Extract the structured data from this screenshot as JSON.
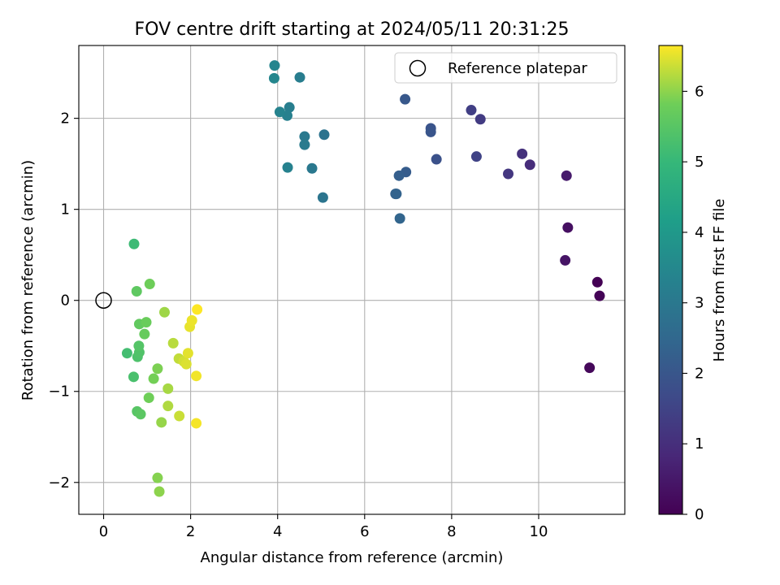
{
  "chart_data": {
    "type": "scatter",
    "title": "FOV centre drift starting at 2024/05/11 20:31:25",
    "xlabel": "Angular distance from reference (arcmin)",
    "ylabel": "Rotation from reference (arcmin)",
    "xlim": [
      -0.57,
      11.98
    ],
    "ylim": [
      -2.35,
      2.8
    ],
    "xticks": [
      0,
      2,
      4,
      6,
      8,
      10
    ],
    "yticks": [
      -2,
      -1,
      0,
      1,
      2
    ],
    "xtick_labels": [
      "0",
      "2",
      "4",
      "6",
      "8",
      "10"
    ],
    "ytick_labels": [
      "−2",
      "−1",
      "0",
      "1",
      "2"
    ],
    "grid": true,
    "colormap": "viridis",
    "colorbar": {
      "label": "Hours from first FF file",
      "range": [
        0,
        6.65
      ],
      "ticks": [
        0,
        1,
        2,
        3,
        4,
        5,
        6
      ],
      "tick_labels": [
        "0",
        "1",
        "2",
        "3",
        "4",
        "5",
        "6"
      ]
    },
    "legend": {
      "position": "top-right",
      "entries": [
        {
          "label": "Reference platepar",
          "marker": "open-circle",
          "color": "#000000"
        }
      ]
    },
    "reference_point": {
      "x": 0,
      "y": 0
    },
    "points": [
      {
        "x": 11.35,
        "y": 0.2,
        "c": 0.0
      },
      {
        "x": 11.4,
        "y": 0.05,
        "c": 0.05
      },
      {
        "x": 11.17,
        "y": -0.74,
        "c": 0.15
      },
      {
        "x": 10.67,
        "y": 0.8,
        "c": 0.3
      },
      {
        "x": 10.61,
        "y": 0.44,
        "c": 0.4
      },
      {
        "x": 10.64,
        "y": 1.37,
        "c": 0.55
      },
      {
        "x": 9.8,
        "y": 1.49,
        "c": 0.95
      },
      {
        "x": 9.62,
        "y": 1.61,
        "c": 1.05
      },
      {
        "x": 9.3,
        "y": 1.39,
        "c": 1.2
      },
      {
        "x": 8.66,
        "y": 1.99,
        "c": 1.3
      },
      {
        "x": 8.45,
        "y": 2.09,
        "c": 1.4
      },
      {
        "x": 8.57,
        "y": 1.58,
        "c": 1.5
      },
      {
        "x": 7.65,
        "y": 1.55,
        "c": 1.85
      },
      {
        "x": 7.52,
        "y": 1.89,
        "c": 1.95
      },
      {
        "x": 7.52,
        "y": 1.85,
        "c": 1.98
      },
      {
        "x": 6.93,
        "y": 2.21,
        "c": 2.05
      },
      {
        "x": 6.95,
        "y": 1.41,
        "c": 2.15
      },
      {
        "x": 6.79,
        "y": 1.37,
        "c": 2.25
      },
      {
        "x": 6.71,
        "y": 1.17,
        "c": 2.3
      },
      {
        "x": 6.73,
        "y": 1.17,
        "c": 2.35
      },
      {
        "x": 6.81,
        "y": 0.9,
        "c": 2.4
      },
      {
        "x": 5.07,
        "y": 1.82,
        "c": 2.85
      },
      {
        "x": 5.04,
        "y": 1.13,
        "c": 2.9
      },
      {
        "x": 4.79,
        "y": 1.45,
        "c": 3.0
      },
      {
        "x": 4.62,
        "y": 1.8,
        "c": 3.05
      },
      {
        "x": 4.62,
        "y": 1.71,
        "c": 3.1
      },
      {
        "x": 4.51,
        "y": 2.45,
        "c": 3.15
      },
      {
        "x": 4.27,
        "y": 2.12,
        "c": 3.2
      },
      {
        "x": 4.22,
        "y": 2.03,
        "c": 3.25
      },
      {
        "x": 4.23,
        "y": 1.46,
        "c": 3.3
      },
      {
        "x": 4.05,
        "y": 2.07,
        "c": 3.35
      },
      {
        "x": 3.93,
        "y": 2.58,
        "c": 3.4
      },
      {
        "x": 3.92,
        "y": 2.44,
        "c": 3.45
      },
      {
        "x": 0.7,
        "y": 0.62,
        "c": 5.1
      },
      {
        "x": 0.54,
        "y": -0.58,
        "c": 5.2
      },
      {
        "x": 0.69,
        "y": -0.84,
        "c": 5.3
      },
      {
        "x": 0.78,
        "y": -0.62,
        "c": 5.35
      },
      {
        "x": 0.82,
        "y": -0.57,
        "c": 5.4
      },
      {
        "x": 0.81,
        "y": -0.5,
        "c": 5.45
      },
      {
        "x": 0.77,
        "y": -1.22,
        "c": 5.5
      },
      {
        "x": 0.85,
        "y": -1.25,
        "c": 5.55
      },
      {
        "x": 0.76,
        "y": 0.1,
        "c": 5.6
      },
      {
        "x": 0.82,
        "y": -0.26,
        "c": 5.65
      },
      {
        "x": 0.94,
        "y": -0.37,
        "c": 5.7
      },
      {
        "x": 0.98,
        "y": -0.24,
        "c": 5.75
      },
      {
        "x": 1.06,
        "y": 0.18,
        "c": 5.8
      },
      {
        "x": 1.04,
        "y": -1.07,
        "c": 5.82
      },
      {
        "x": 1.15,
        "y": -0.86,
        "c": 5.85
      },
      {
        "x": 1.24,
        "y": -0.75,
        "c": 5.9
      },
      {
        "x": 1.24,
        "y": -1.95,
        "c": 5.95
      },
      {
        "x": 1.28,
        "y": -2.1,
        "c": 6.0
      },
      {
        "x": 1.33,
        "y": -1.34,
        "c": 6.05
      },
      {
        "x": 1.4,
        "y": -0.13,
        "c": 6.1
      },
      {
        "x": 1.48,
        "y": -0.97,
        "c": 6.15
      },
      {
        "x": 1.48,
        "y": -1.16,
        "c": 6.2
      },
      {
        "x": 1.6,
        "y": -0.47,
        "c": 6.25
      },
      {
        "x": 1.73,
        "y": -0.64,
        "c": 6.3
      },
      {
        "x": 1.74,
        "y": -1.27,
        "c": 6.35
      },
      {
        "x": 1.84,
        "y": -0.67,
        "c": 6.4
      },
      {
        "x": 1.9,
        "y": -0.7,
        "c": 6.45
      },
      {
        "x": 1.94,
        "y": -0.58,
        "c": 6.5
      },
      {
        "x": 1.98,
        "y": -0.29,
        "c": 6.52
      },
      {
        "x": 2.03,
        "y": -0.22,
        "c": 6.55
      },
      {
        "x": 2.13,
        "y": -0.83,
        "c": 6.58
      },
      {
        "x": 2.13,
        "y": -1.35,
        "c": 6.6
      },
      {
        "x": 2.15,
        "y": -0.1,
        "c": 6.65
      }
    ]
  }
}
